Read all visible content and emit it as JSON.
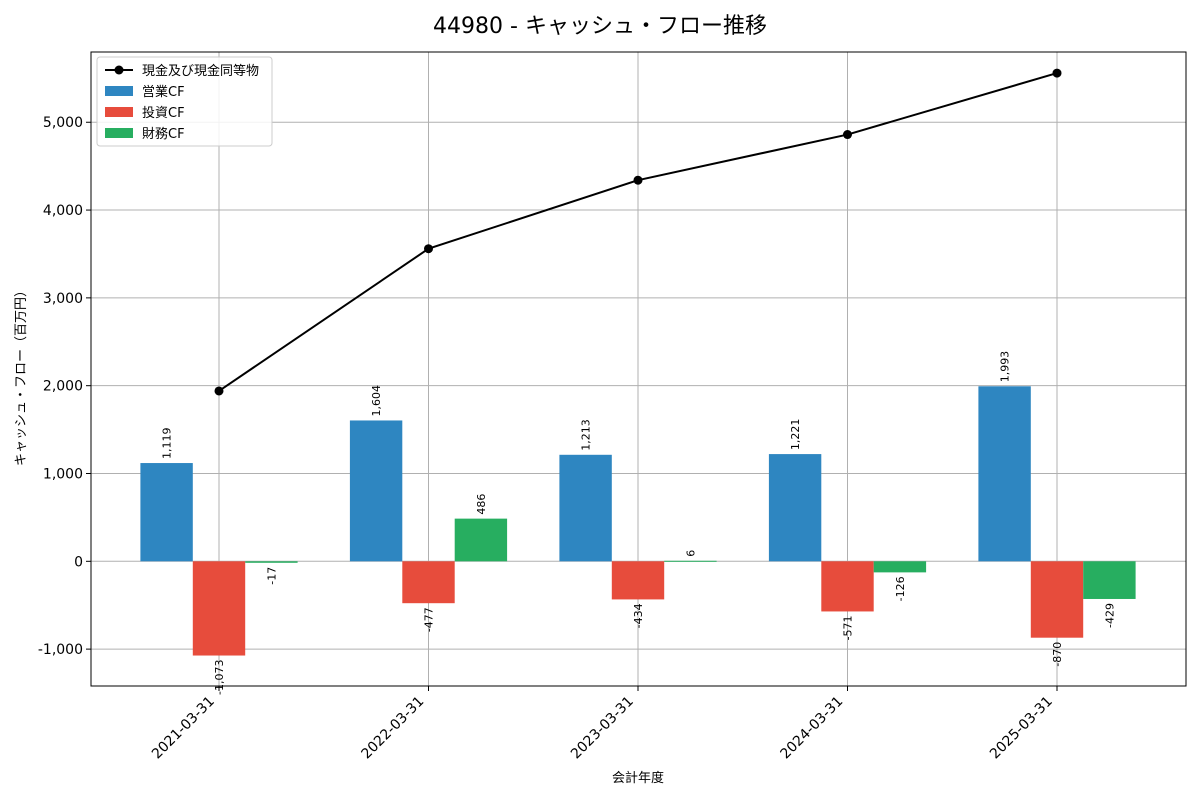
{
  "chart_data": {
    "type": "bar",
    "title": "44980 - キャッシュ・フロー推移",
    "xlabel": "会計年度",
    "ylabel": "キャッシュ・フロー（百万円）",
    "categories": [
      "2021-03-31",
      "2022-03-31",
      "2023-03-31",
      "2024-03-31",
      "2025-03-31"
    ],
    "ylim": [
      -1420,
      5800
    ],
    "yticks": [
      -1000,
      0,
      1000,
      2000,
      3000,
      4000,
      5000
    ],
    "ytick_labels": [
      "-1,000",
      "0",
      "1,000",
      "2,000",
      "3,000",
      "4,000",
      "5,000"
    ],
    "grid": true,
    "legend_position": "top-left",
    "series": [
      {
        "name": "営業CF",
        "kind": "bar",
        "color": "#2e86c1",
        "values": [
          1119,
          1604,
          1213,
          1221,
          1993
        ],
        "labels": [
          "1,119",
          "1,604",
          "1,213",
          "1,221",
          "1,993"
        ]
      },
      {
        "name": "投資CF",
        "kind": "bar",
        "color": "#e74c3c",
        "values": [
          -1073,
          -477,
          -434,
          -571,
          -870
        ],
        "labels": [
          "-1,073",
          "-477",
          "-434",
          "-571",
          "-870"
        ]
      },
      {
        "name": "財務CF",
        "kind": "bar",
        "color": "#27ae60",
        "values": [
          -17,
          486,
          6,
          -126,
          -429
        ],
        "labels": [
          "-17",
          "486",
          "6",
          "-126",
          "-429"
        ]
      },
      {
        "name": "現金及び現金同等物",
        "kind": "line",
        "color": "#000000",
        "values": [
          1940,
          3560,
          4340,
          4860,
          5560
        ]
      }
    ]
  }
}
